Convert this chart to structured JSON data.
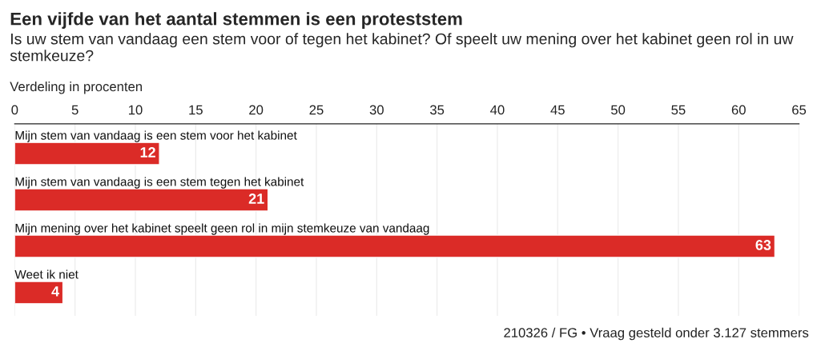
{
  "chart_data": {
    "type": "bar",
    "orientation": "horizontal",
    "title": "Een vijfde van het aantal stemmen is een proteststem",
    "subtitle": "Is uw stem van vandaag een stem voor of tegen het kabinet? Of speelt uw mening over het kabinet geen rol in uw stemkeuze?",
    "xlabel": "Verdeling in procenten",
    "categories": [
      "Mijn stem van vandaag is een stem voor het kabinet",
      "Mijn stem van vandaag is een stem tegen het kabinet",
      "Mijn mening over het kabinet speelt geen rol in mijn stemkeuze van vandaag",
      "Weet ik niet"
    ],
    "values": [
      12,
      21,
      63,
      4
    ],
    "color": "#db2b27",
    "xlim": [
      0,
      65
    ],
    "xticks": [
      0,
      5,
      10,
      15,
      20,
      25,
      30,
      35,
      40,
      45,
      50,
      55,
      60,
      65
    ],
    "grid": "x",
    "data_labels": true,
    "annotations": [
      "210326 / FG • Vraag gesteld onder 3.127 stemmers"
    ]
  }
}
